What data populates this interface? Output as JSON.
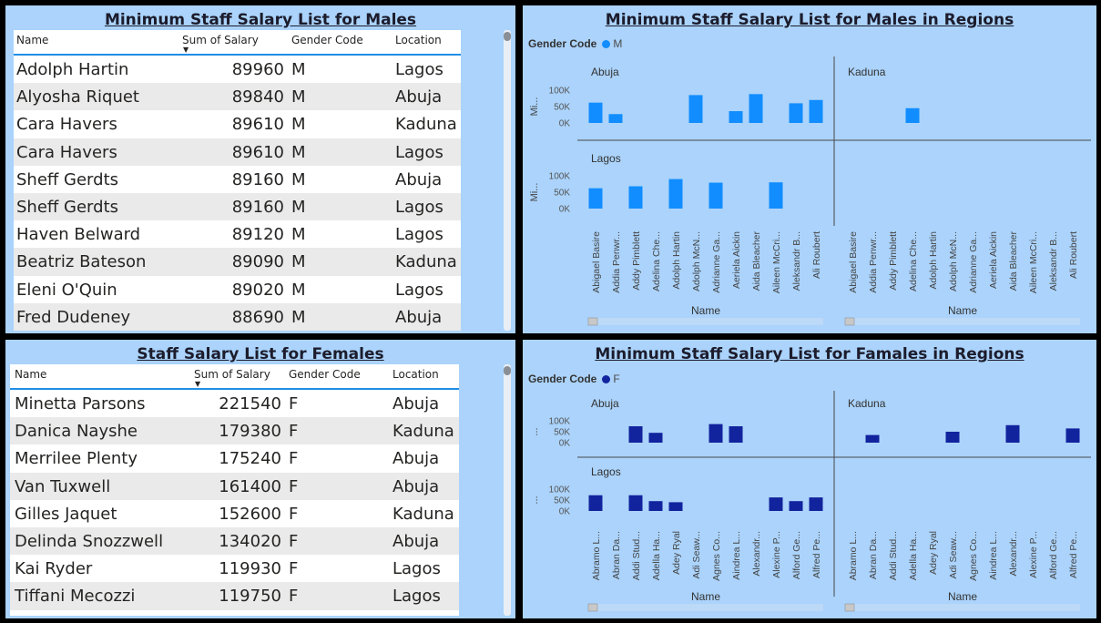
{
  "males_table": {
    "title": "Minimum Staff Salary List for Males",
    "columns": [
      "Name",
      "Sum of Salary",
      "Gender Code",
      "Location"
    ],
    "rows": [
      [
        "Adolph Hartin",
        "89960",
        "M",
        "Lagos"
      ],
      [
        "Alyosha Riquet",
        "89840",
        "M",
        "Abuja"
      ],
      [
        "Cara Havers",
        "89610",
        "M",
        "Kaduna"
      ],
      [
        "Cara Havers",
        "89610",
        "M",
        "Lagos"
      ],
      [
        "Sheff Gerdts",
        "89160",
        "M",
        "Abuja"
      ],
      [
        "Sheff Gerdts",
        "89160",
        "M",
        "Lagos"
      ],
      [
        "Haven Belward",
        "89120",
        "M",
        "Lagos"
      ],
      [
        "Beatriz Bateson",
        "89090",
        "M",
        "Kaduna"
      ],
      [
        "Eleni O'Quin",
        "89020",
        "M",
        "Lagos"
      ],
      [
        "Fred Dudeney",
        "88690",
        "M",
        "Abuja"
      ]
    ]
  },
  "females_table": {
    "title": "Staff Salary List for Females",
    "columns": [
      "Name",
      "Sum of Salary",
      "Gender Code",
      "Location"
    ],
    "rows": [
      [
        "Minetta Parsons",
        "221540",
        "F",
        "Abuja"
      ],
      [
        "Danica Nayshe",
        "179380",
        "F",
        "Kaduna"
      ],
      [
        "Merrilee Plenty",
        "175240",
        "F",
        "Abuja"
      ],
      [
        "Van Tuxwell",
        "161400",
        "F",
        "Abuja"
      ],
      [
        "Gilles Jaquet",
        "152600",
        "F",
        "Kaduna"
      ],
      [
        "Delinda Snozzwell",
        "134020",
        "F",
        "Abuja"
      ],
      [
        "Kai Ryder",
        "119930",
        "F",
        "Lagos"
      ],
      [
        "Tiffani Mecozzi",
        "119750",
        "F",
        "Lagos"
      ]
    ]
  },
  "males_chart_panel": {
    "title": "Minimum Staff Salary List for Males in Regions",
    "legend_title": "Gender Code",
    "legend_item": "M",
    "color": "#118dff"
  },
  "females_chart_panel": {
    "title": "Minimum Staff Salary List for Famales in Regions",
    "legend_title": "Gender Code",
    "legend_item": "F",
    "color": "#12239e"
  },
  "chart_data": [
    {
      "type": "bar",
      "title": "Minimum Staff Salary List for Males in Regions",
      "xlabel": "Name",
      "ylabel": "Mi...",
      "yticks": [
        "0K",
        "50K",
        "100K"
      ],
      "ylim": [
        0,
        100000
      ],
      "legend": {
        "title": "Gender Code",
        "items": [
          "M"
        ],
        "placement": "top-left"
      },
      "color": "#118dff",
      "categories": [
        "Abigael Basire",
        "Addia Penwr...",
        "Addy Pimblett",
        "Adelina Che...",
        "Adolph Hartin",
        "Adolph McN...",
        "Adrianne Ga...",
        "Aeriela Aickin",
        "Aida Bleacher",
        "Aileen McCri...",
        "Aleksandr B...",
        "Ali Roubert"
      ],
      "facets": [
        {
          "name": "Abuja",
          "values": [
            62000,
            27000,
            null,
            null,
            null,
            85000,
            null,
            36000,
            88000,
            null,
            60000,
            70000
          ]
        },
        {
          "name": "Kaduna",
          "values": [
            null,
            null,
            null,
            45000,
            null,
            null,
            null,
            null,
            null,
            null,
            null,
            null
          ]
        },
        {
          "name": "Lagos",
          "values": [
            62000,
            null,
            68000,
            null,
            90000,
            null,
            79000,
            null,
            null,
            80000,
            null,
            null
          ]
        }
      ]
    },
    {
      "type": "bar",
      "title": "Minimum Staff Salary List for Famales in Regions",
      "xlabel": "Name",
      "ylabel": "...",
      "yticks": [
        "0K",
        "50K",
        "100K"
      ],
      "ylim": [
        0,
        100000
      ],
      "legend": {
        "title": "Gender Code",
        "items": [
          "F"
        ],
        "placement": "top-left"
      },
      "color": "#12239e",
      "categories": [
        "Abramo L...",
        "Abran Da...",
        "Addi Stud...",
        "Adella Ha...",
        "Adey Ryal",
        "Adi Seaw...",
        "Agnes Co...",
        "Aindrea L...",
        "Alexandr...",
        "Alexine P...",
        "Alford Ge...",
        "Alfred Pe..."
      ],
      "facets": [
        {
          "name": "Abuja",
          "values": [
            null,
            null,
            75000,
            45000,
            null,
            null,
            85000,
            75000,
            null,
            null,
            null,
            null
          ]
        },
        {
          "name": "Kaduna",
          "values": [
            null,
            35000,
            null,
            null,
            null,
            50000,
            null,
            null,
            80000,
            null,
            null,
            65000
          ]
        },
        {
          "name": "Lagos",
          "values": [
            72000,
            null,
            72000,
            45000,
            40000,
            null,
            null,
            null,
            null,
            62000,
            45000,
            62000
          ]
        }
      ]
    }
  ]
}
